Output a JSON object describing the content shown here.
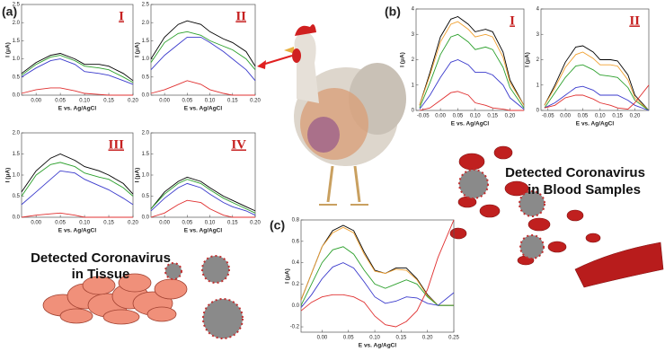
{
  "figure": {
    "labels": [
      "(a)",
      "(b)",
      "(c)"
    ],
    "captions": [
      "Detected Coronavirus",
      "in Tissue",
      "Detected Coronavirus",
      "in Blood Samples"
    ]
  },
  "chart_data": [
    {
      "type": "line",
      "title": "I",
      "xlabel": "E vs. Ag/AgCl",
      "ylabel": "I (μA)",
      "x": [
        -0.03,
        0,
        0.03,
        0.05,
        0.08,
        0.1,
        0.13,
        0.15,
        0.18,
        0.2
      ],
      "xlim": [
        -0.03,
        0.2
      ],
      "ylim": [
        0,
        2.5
      ],
      "xticks": [
        {
          "value": 0,
          "label": "0.00"
        },
        0.05,
        {
          "value": 0.1,
          "label": "0.10"
        },
        0.15,
        {
          "value": 0.2,
          "label": "0.20"
        }
      ],
      "yticks": [
        {
          "value": 0,
          "label": "0.0"
        },
        0.5,
        {
          "value": 1,
          "label": "1.0"
        },
        1.5,
        {
          "value": 2,
          "label": "2.0"
        },
        2.5
      ],
      "series": [
        {
          "color": "#000000",
          "values": [
            0.6,
            0.9,
            1.1,
            1.15,
            1.0,
            0.85,
            0.85,
            0.8,
            0.6,
            0.4
          ]
        },
        {
          "color": "#2ca02c",
          "values": [
            0.55,
            0.85,
            1.05,
            1.1,
            0.95,
            0.8,
            0.75,
            0.7,
            0.5,
            0.35
          ]
        },
        {
          "color": "#3a3acc",
          "values": [
            0.5,
            0.75,
            0.95,
            1.0,
            0.85,
            0.65,
            0.6,
            0.55,
            0.4,
            0.3
          ]
        },
        {
          "color": "#e03030",
          "values": [
            0.05,
            0.15,
            0.2,
            0.2,
            0.12,
            0.05,
            0.02,
            0.0,
            0.0,
            0.0
          ]
        }
      ]
    },
    {
      "type": "line",
      "title": "II",
      "xlabel": "E vs. Ag/AgCl",
      "ylabel": "I (μA)",
      "x": [
        -0.03,
        0,
        0.03,
        0.05,
        0.08,
        0.1,
        0.13,
        0.15,
        0.18,
        0.2
      ],
      "xlim": [
        -0.03,
        0.2
      ],
      "ylim": [
        0,
        2.5
      ],
      "xticks": [
        {
          "value": 0,
          "label": "0.00"
        },
        0.05,
        {
          "value": 0.1,
          "label": "0.10"
        },
        0.15,
        {
          "value": 0.2,
          "label": "0.20"
        }
      ],
      "yticks": [
        {
          "value": 0,
          "label": "0.0"
        },
        0.5,
        {
          "value": 1,
          "label": "1.0"
        },
        1.5,
        {
          "value": 2,
          "label": "2.0"
        },
        2.5
      ],
      "series": [
        {
          "color": "#000000",
          "values": [
            1.0,
            1.6,
            1.95,
            2.05,
            1.95,
            1.75,
            1.55,
            1.45,
            1.2,
            0.8
          ]
        },
        {
          "color": "#2ca02c",
          "values": [
            0.9,
            1.45,
            1.7,
            1.75,
            1.65,
            1.5,
            1.35,
            1.25,
            1.0,
            0.7
          ]
        },
        {
          "color": "#3a3acc",
          "values": [
            0.7,
            1.1,
            1.4,
            1.6,
            1.6,
            1.45,
            1.2,
            1.0,
            0.7,
            0.4
          ]
        },
        {
          "color": "#e03030",
          "values": [
            0.05,
            0.15,
            0.3,
            0.4,
            0.3,
            0.15,
            0.05,
            0.0,
            0.0,
            0.0
          ]
        }
      ]
    },
    {
      "type": "line",
      "title": "III",
      "xlabel": "E vs. Ag/AgCl",
      "ylabel": "I (μA)",
      "x": [
        -0.03,
        0,
        0.03,
        0.05,
        0.08,
        0.1,
        0.13,
        0.15,
        0.18,
        0.2
      ],
      "xlim": [
        -0.03,
        0.2
      ],
      "ylim": [
        0,
        2.0
      ],
      "xticks": [
        {
          "value": 0,
          "label": "0.00"
        },
        0.05,
        {
          "value": 0.1,
          "label": "0.10"
        },
        0.15,
        {
          "value": 0.2,
          "label": "0.20"
        }
      ],
      "yticks": [
        {
          "value": 0,
          "label": "0.0"
        },
        0.5,
        {
          "value": 1,
          "label": "1.0"
        },
        1.5,
        {
          "value": 2,
          "label": "2.0"
        }
      ],
      "series": [
        {
          "color": "#000000",
          "values": [
            0.6,
            1.1,
            1.4,
            1.5,
            1.35,
            1.2,
            1.1,
            1.0,
            0.8,
            0.55
          ]
        },
        {
          "color": "#2ca02c",
          "values": [
            0.5,
            1.0,
            1.25,
            1.3,
            1.2,
            1.05,
            0.95,
            0.9,
            0.7,
            0.5
          ]
        },
        {
          "color": "#3a3acc",
          "values": [
            0.3,
            0.6,
            0.9,
            1.1,
            1.05,
            0.9,
            0.75,
            0.65,
            0.45,
            0.3
          ]
        },
        {
          "color": "#e03030",
          "values": [
            0.0,
            0.05,
            0.08,
            0.1,
            0.05,
            0.0,
            0.0,
            0.0,
            0.0,
            0.0
          ]
        }
      ]
    },
    {
      "type": "line",
      "title": "IV",
      "xlabel": "E vs. Ag/AgCl",
      "ylabel": "I (μA)",
      "x": [
        -0.03,
        0,
        0.03,
        0.05,
        0.08,
        0.1,
        0.13,
        0.15,
        0.18,
        0.2
      ],
      "xlim": [
        -0.03,
        0.2
      ],
      "ylim": [
        0,
        2.0
      ],
      "xticks": [
        {
          "value": 0,
          "label": "0.00"
        },
        0.05,
        {
          "value": 0.1,
          "label": "0.10"
        },
        0.15,
        {
          "value": 0.2,
          "label": "0.20"
        }
      ],
      "yticks": [
        {
          "value": 0,
          "label": "0.0"
        },
        0.5,
        {
          "value": 1,
          "label": "1.0"
        },
        1.5,
        {
          "value": 2,
          "label": "2.0"
        }
      ],
      "series": [
        {
          "color": "#000000",
          "values": [
            0.2,
            0.6,
            0.85,
            0.95,
            0.85,
            0.7,
            0.5,
            0.4,
            0.25,
            0.15
          ]
        },
        {
          "color": "#2ca02c",
          "values": [
            0.2,
            0.55,
            0.8,
            0.9,
            0.8,
            0.65,
            0.45,
            0.35,
            0.2,
            0.1
          ]
        },
        {
          "color": "#3a3acc",
          "values": [
            0.15,
            0.45,
            0.7,
            0.8,
            0.7,
            0.55,
            0.35,
            0.25,
            0.15,
            0.05
          ]
        },
        {
          "color": "#e03030",
          "values": [
            0.0,
            0.1,
            0.3,
            0.4,
            0.35,
            0.2,
            0.05,
            0.0,
            0.0,
            0.0
          ]
        }
      ]
    },
    {
      "type": "line",
      "title": "I",
      "xlabel": "E vs. Ag/AgCl",
      "ylabel": "I (μA)",
      "x": [
        -0.06,
        -0.03,
        0,
        0.03,
        0.05,
        0.08,
        0.1,
        0.13,
        0.15,
        0.18,
        0.2,
        0.24
      ],
      "xlim": [
        -0.07,
        0.24
      ],
      "ylim": [
        0,
        4
      ],
      "xticks": [
        -0.05,
        {
          "value": 0,
          "label": "0.00"
        },
        0.05,
        {
          "value": 0.1,
          "label": "0.10"
        },
        0.15,
        {
          "value": 0.2,
          "label": "0.20"
        }
      ],
      "yticks": [
        0,
        1,
        2,
        3,
        4
      ],
      "series": [
        {
          "color": "#000000",
          "values": [
            0.2,
            1.5,
            2.9,
            3.6,
            3.7,
            3.4,
            3.1,
            3.2,
            3.1,
            2.3,
            1.2,
            0.2
          ]
        },
        {
          "color": "#f0a030",
          "values": [
            0.2,
            1.4,
            2.7,
            3.4,
            3.5,
            3.2,
            2.9,
            3.0,
            2.9,
            2.1,
            1.1,
            0.2
          ]
        },
        {
          "color": "#2ca02c",
          "values": [
            0.1,
            1.1,
            2.2,
            2.9,
            3.0,
            2.7,
            2.4,
            2.5,
            2.4,
            1.7,
            0.9,
            0.1
          ]
        },
        {
          "color": "#3a3acc",
          "values": [
            0.05,
            0.6,
            1.3,
            1.9,
            2.0,
            1.8,
            1.5,
            1.5,
            1.4,
            1.0,
            0.5,
            0.05
          ]
        },
        {
          "color": "#e03030",
          "values": [
            0.0,
            0.1,
            0.4,
            0.7,
            0.75,
            0.6,
            0.3,
            0.2,
            0.1,
            0.05,
            0.0,
            0.0
          ]
        }
      ]
    },
    {
      "type": "line",
      "title": "II",
      "xlabel": "E vs. Ag/AgCl",
      "ylabel": "I (μA)",
      "x": [
        -0.06,
        -0.03,
        0,
        0.03,
        0.05,
        0.08,
        0.1,
        0.13,
        0.15,
        0.18,
        0.2,
        0.24
      ],
      "xlim": [
        -0.07,
        0.24
      ],
      "ylim": [
        0,
        4
      ],
      "xticks": [
        -0.05,
        {
          "value": 0,
          "label": "0.00"
        },
        0.05,
        {
          "value": 0.1,
          "label": "0.10"
        },
        0.15,
        {
          "value": 0.2,
          "label": "0.20"
        }
      ],
      "yticks": [
        0,
        1,
        2,
        3,
        4
      ],
      "series": [
        {
          "color": "#000000",
          "values": [
            0.2,
            1.0,
            1.9,
            2.5,
            2.55,
            2.3,
            2.0,
            2.0,
            1.95,
            1.4,
            0.6,
            0.0
          ]
        },
        {
          "color": "#f0a030",
          "values": [
            0.2,
            0.9,
            1.7,
            2.2,
            2.3,
            2.05,
            1.8,
            1.8,
            1.75,
            1.2,
            0.5,
            0.0
          ]
        },
        {
          "color": "#2ca02c",
          "values": [
            0.1,
            0.7,
            1.3,
            1.75,
            1.8,
            1.6,
            1.4,
            1.35,
            1.3,
            0.9,
            0.4,
            0.0
          ]
        },
        {
          "color": "#3a3acc",
          "values": [
            0.1,
            0.3,
            0.6,
            0.9,
            0.95,
            0.8,
            0.6,
            0.6,
            0.6,
            0.4,
            0.2,
            0.0
          ]
        },
        {
          "color": "#e03030",
          "values": [
            0.1,
            0.2,
            0.5,
            0.6,
            0.6,
            0.45,
            0.3,
            0.2,
            0.1,
            0.05,
            0.3,
            1.0
          ]
        }
      ]
    },
    {
      "type": "line",
      "xlabel": "E vs. Ag/AgCl",
      "ylabel": "I (μA)",
      "x": [
        -0.04,
        -0.02,
        0,
        0.02,
        0.04,
        0.06,
        0.08,
        0.1,
        0.12,
        0.14,
        0.16,
        0.18,
        0.2,
        0.22,
        0.25
      ],
      "xlim": [
        -0.04,
        0.25
      ],
      "ylim": [
        -0.25,
        0.8
      ],
      "xticks": [
        {
          "value": 0,
          "label": "0.00"
        },
        0.05,
        {
          "value": 0.1,
          "label": "0.10"
        },
        0.15,
        {
          "value": 0.2,
          "label": "0.20"
        },
        0.25
      ],
      "yticks": [
        -0.2,
        {
          "value": 0,
          "label": "0.0"
        },
        0.2,
        0.4,
        0.6,
        0.8
      ],
      "series": [
        {
          "color": "#000000",
          "values": [
            0.05,
            0.3,
            0.55,
            0.7,
            0.75,
            0.7,
            0.5,
            0.33,
            0.3,
            0.35,
            0.35,
            0.25,
            0.1,
            0.0,
            0.0
          ]
        },
        {
          "color": "#f0a030",
          "values": [
            0.05,
            0.3,
            0.55,
            0.68,
            0.73,
            0.68,
            0.48,
            0.32,
            0.3,
            0.34,
            0.33,
            0.24,
            0.09,
            0.0,
            0.0
          ]
        },
        {
          "color": "#2ca02c",
          "values": [
            0.0,
            0.2,
            0.4,
            0.52,
            0.55,
            0.48,
            0.33,
            0.2,
            0.16,
            0.2,
            0.24,
            0.2,
            0.08,
            0.0,
            0.0
          ]
        },
        {
          "color": "#3a3acc",
          "values": [
            -0.02,
            0.1,
            0.25,
            0.36,
            0.4,
            0.35,
            0.22,
            0.08,
            0.02,
            0.04,
            0.08,
            0.07,
            0.02,
            0.0,
            0.12
          ]
        },
        {
          "color": "#e03030",
          "values": [
            -0.05,
            0.03,
            0.08,
            0.1,
            0.1,
            0.08,
            0.03,
            -0.1,
            -0.18,
            -0.2,
            -0.15,
            -0.05,
            0.15,
            0.45,
            0.8
          ]
        }
      ]
    }
  ]
}
